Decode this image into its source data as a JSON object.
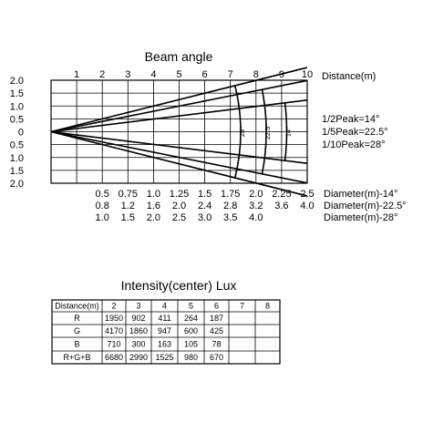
{
  "beam_chart": {
    "title": "Beam angle",
    "x_axis_label": "Distance(m)",
    "x_ticks": [
      "1",
      "2",
      "3",
      "4",
      "5",
      "6",
      "7",
      "8",
      "9",
      "10"
    ],
    "y_ticks": [
      "2.0",
      "1.5",
      "1.0",
      "0.5",
      "0",
      "0.5",
      "1.0",
      "1.5",
      "2.0"
    ],
    "x_range": [
      0,
      10
    ],
    "y_range": [
      -2,
      2
    ],
    "grid": true,
    "beams": [
      {
        "legend": "1/2Peak=14°",
        "arc_label": "14°",
        "full_angle_deg": 14,
        "arc_distance_m": 9.2
      },
      {
        "legend": "1/5Peak=22.5°",
        "arc_label": "22.5°",
        "full_angle_deg": 22.5,
        "arc_distance_m": 8.4
      },
      {
        "legend": "1/10Peak=28°",
        "arc_label": "28°",
        "full_angle_deg": 28,
        "arc_distance_m": 7.4
      }
    ],
    "diameter_rows": [
      {
        "values": [
          "0.5",
          "0.75",
          "1.0",
          "1.25",
          "1.5",
          "1.75",
          "2.0",
          "2.25",
          "2.5"
        ],
        "label": "Diameter(m)-14°"
      },
      {
        "values": [
          "0.8",
          "1.2",
          "1.6",
          "2.0",
          "2.4",
          "2.8",
          "3.2",
          "3.6",
          "4.0"
        ],
        "label": "Diameter(m)-22.5°"
      },
      {
        "values": [
          "1.0",
          "1.5",
          "2.0",
          "2.5",
          "3.0",
          "3.5",
          "4.0"
        ],
        "label": "Diameter(m)-28°"
      }
    ]
  },
  "lux_table": {
    "title": "Intensity(center) Lux",
    "header": [
      "Distance(m)",
      "2",
      "3",
      "4",
      "5",
      "6",
      "7",
      "8"
    ],
    "rows": [
      [
        "R",
        "1950",
        "902",
        "411",
        "264",
        "187",
        "",
        ""
      ],
      [
        "G",
        "4170",
        "1860",
        "947",
        "600",
        "425",
        "",
        ""
      ],
      [
        "B",
        "710",
        "300",
        "163",
        "105",
        "78",
        "",
        ""
      ],
      [
        "R+G+B",
        "6680",
        "2990",
        "1525",
        "980",
        "670",
        "",
        ""
      ]
    ]
  }
}
